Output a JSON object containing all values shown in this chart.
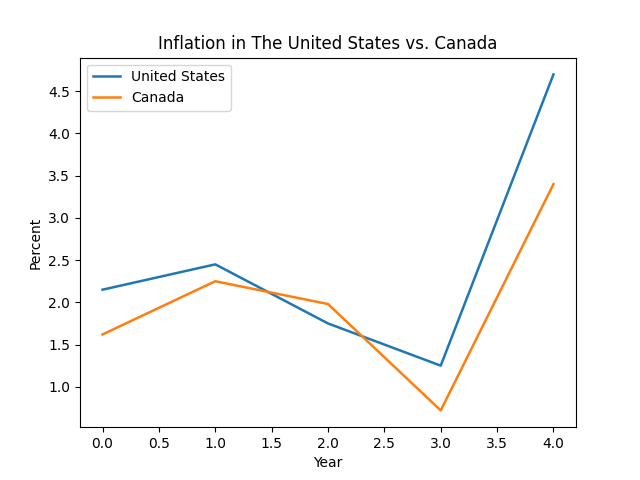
{
  "title": "Inflation in The United States vs. Canada",
  "xlabel": "Year",
  "ylabel": "Percent",
  "us_x": [
    0,
    1,
    2,
    3,
    4
  ],
  "us_y": [
    2.15,
    2.45,
    1.75,
    1.25,
    4.7
  ],
  "canada_x": [
    0,
    1,
    2,
    3,
    4
  ],
  "canada_y": [
    1.62,
    2.25,
    1.98,
    0.72,
    3.4
  ],
  "us_color": "#1f77b4",
  "canada_color": "#ff7f0e",
  "us_label": "United States",
  "canada_label": "Canada",
  "figsize": [
    6.4,
    4.8
  ],
  "dpi": 100
}
